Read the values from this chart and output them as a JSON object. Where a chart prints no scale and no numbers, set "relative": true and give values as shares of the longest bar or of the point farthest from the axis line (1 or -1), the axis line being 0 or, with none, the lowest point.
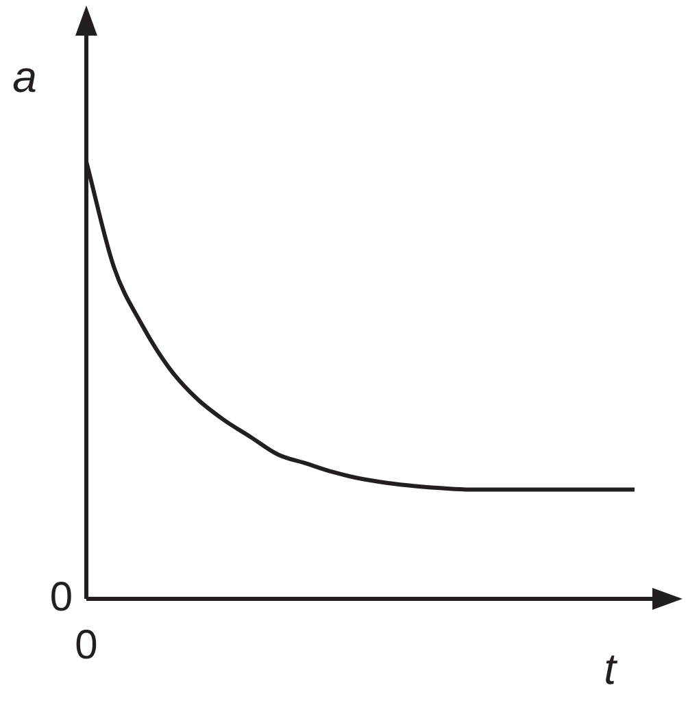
{
  "chart_data": {
    "type": "line",
    "relative": true,
    "xlabel": "t",
    "ylabel": "a",
    "categories": [
      null,
      null,
      null,
      null,
      null,
      null,
      null,
      null,
      null,
      null,
      null,
      null,
      null,
      null,
      null,
      null,
      null,
      null,
      null,
      null,
      null
    ],
    "series": [
      {
        "color": "#231f20",
        "values": [
          1.0,
          0.76,
          0.63,
          0.53,
          0.46,
          0.41,
          0.37,
          0.33,
          0.31,
          0.29,
          0.275,
          0.265,
          0.258,
          0.253,
          0.25,
          0.25,
          0.25,
          0.25,
          0.25,
          0.25,
          0.25
        ]
      }
    ],
    "annotations": [
      "0",
      "0"
    ],
    "grid": false,
    "legend": false,
    "marker": "none",
    "line_style": "solid"
  }
}
